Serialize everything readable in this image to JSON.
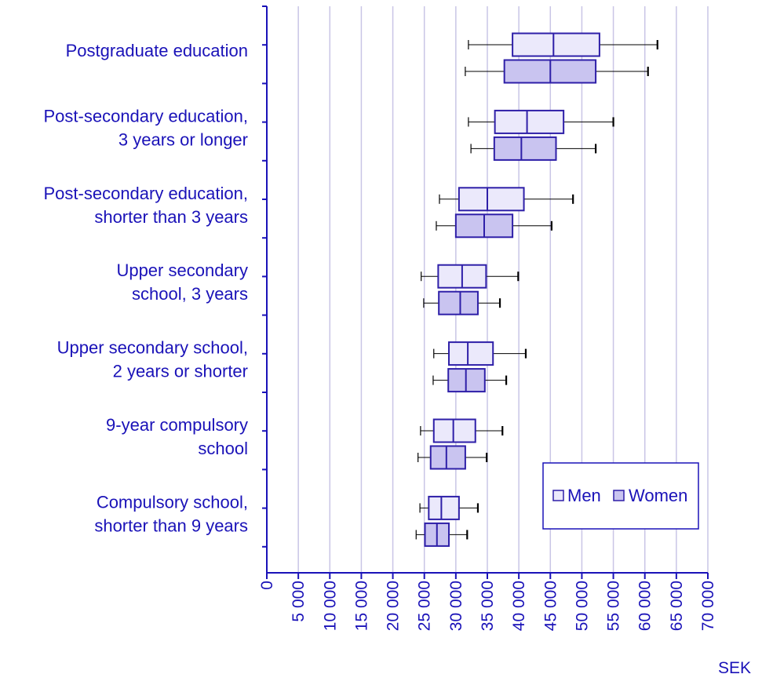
{
  "colors": {
    "axis": "#1a12b8",
    "grid": "#c9c5e6",
    "box_stroke": "#2e1fa8",
    "whisker": "#000000",
    "men_fill": "#ebe9fb",
    "women_fill": "#c9c4f0"
  },
  "chart_data": {
    "type": "boxplot",
    "orientation": "horizontal",
    "title": "",
    "xlabel": "SEK",
    "xlim": [
      0,
      70000
    ],
    "xticks": [
      0,
      5000,
      10000,
      15000,
      20000,
      25000,
      30000,
      35000,
      40000,
      45000,
      50000,
      55000,
      60000,
      65000,
      70000
    ],
    "xtick_labels": [
      "0",
      "5 000",
      "10 000",
      "15 000",
      "20 000",
      "25 000",
      "30 000",
      "35 000",
      "40 000",
      "45 000",
      "50 000",
      "55 000",
      "60 000",
      "65 000",
      "70 000"
    ],
    "grid": true,
    "legend_position": "bottom-right",
    "series": [
      {
        "name": "Men"
      },
      {
        "name": "Women"
      }
    ],
    "categories": [
      {
        "label_lines": [
          "Postgraduate education"
        ],
        "men": {
          "min": 32000,
          "q1": 39000,
          "median": 45500,
          "q3": 52800,
          "max": 62000
        },
        "women": {
          "min": 31500,
          "q1": 37700,
          "median": 45000,
          "q3": 52200,
          "max": 60500
        }
      },
      {
        "label_lines": [
          "Post-secondary education,",
          "3 years or longer"
        ],
        "men": {
          "min": 32000,
          "q1": 36200,
          "median": 41300,
          "q3": 47100,
          "max": 55000
        },
        "women": {
          "min": 32400,
          "q1": 36100,
          "median": 40400,
          "q3": 45900,
          "max": 52200
        }
      },
      {
        "label_lines": [
          "Post-secondary education,",
          "shorter than 3 years"
        ],
        "men": {
          "min": 27400,
          "q1": 30500,
          "median": 35000,
          "q3": 40800,
          "max": 48600
        },
        "women": {
          "min": 26900,
          "q1": 30000,
          "median": 34500,
          "q3": 39000,
          "max": 45200
        }
      },
      {
        "label_lines": [
          "Upper secondary",
          "school, 3 years"
        ],
        "men": {
          "min": 24500,
          "q1": 27200,
          "median": 31000,
          "q3": 34800,
          "max": 39900
        },
        "women": {
          "min": 24900,
          "q1": 27300,
          "median": 30700,
          "q3": 33500,
          "max": 37000
        }
      },
      {
        "label_lines": [
          "Upper secondary school,",
          "2 years or shorter"
        ],
        "men": {
          "min": 26500,
          "q1": 28900,
          "median": 31900,
          "q3": 35900,
          "max": 41100
        },
        "women": {
          "min": 26400,
          "q1": 28800,
          "median": 31600,
          "q3": 34600,
          "max": 38000
        }
      },
      {
        "label_lines": [
          "9-year compulsory",
          "school"
        ],
        "men": {
          "min": 24400,
          "q1": 26500,
          "median": 29600,
          "q3": 33100,
          "max": 37400
        },
        "women": {
          "min": 24000,
          "q1": 26000,
          "median": 28500,
          "q3": 31500,
          "max": 34900
        }
      },
      {
        "label_lines": [
          "Compulsory school,",
          "shorter than 9 years"
        ],
        "men": {
          "min": 24300,
          "q1": 25700,
          "median": 27700,
          "q3": 30500,
          "max": 33500
        },
        "women": {
          "min": 23700,
          "q1": 25100,
          "median": 27000,
          "q3": 28900,
          "max": 31800
        }
      }
    ]
  }
}
